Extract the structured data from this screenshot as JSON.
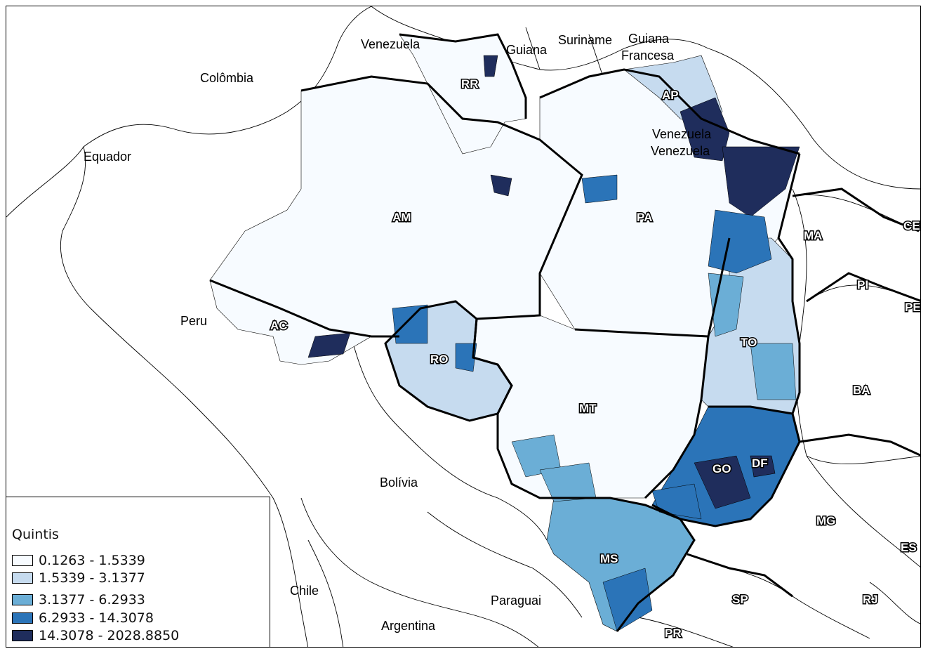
{
  "map": {
    "colors": {
      "q1": "#f7fbff",
      "q2": "#c6dbef",
      "q3": "#6baed6",
      "q4": "#2b74b8",
      "q5": "#1f2d5c",
      "outline": "#000000"
    },
    "countries": [
      {
        "key": "venezuela",
        "label": "Venezuela"
      },
      {
        "key": "guiana",
        "label": "Guiana"
      },
      {
        "key": "suriname",
        "label": "Suriname"
      },
      {
        "key": "guiana_francesa_1",
        "label": "Guiana"
      },
      {
        "key": "guiana_francesa_2",
        "label": "Francesa"
      },
      {
        "key": "colombia",
        "label": "Colômbia"
      },
      {
        "key": "equador",
        "label": "Equador"
      },
      {
        "key": "peru",
        "label": "Peru"
      },
      {
        "key": "bolivia",
        "label": "Bolívia"
      },
      {
        "key": "chile",
        "label": "Chile"
      },
      {
        "key": "paraguai",
        "label": "Paraguai"
      },
      {
        "key": "argentina",
        "label": "Argentina"
      },
      {
        "key": "venezuela_2",
        "label": "Venezuela"
      },
      {
        "key": "venezuela_3",
        "label": "Venezuela"
      }
    ],
    "states": [
      {
        "key": "rr",
        "label": "RR"
      },
      {
        "key": "ap",
        "label": "AP"
      },
      {
        "key": "am",
        "label": "AM"
      },
      {
        "key": "pa",
        "label": "PA"
      },
      {
        "key": "ma",
        "label": "MA"
      },
      {
        "key": "ce",
        "label": "CE"
      },
      {
        "key": "pi",
        "label": "PI"
      },
      {
        "key": "pe",
        "label": "PE"
      },
      {
        "key": "ac",
        "label": "AC"
      },
      {
        "key": "ro",
        "label": "RO"
      },
      {
        "key": "to",
        "label": "TO"
      },
      {
        "key": "ba",
        "label": "BA"
      },
      {
        "key": "mt",
        "label": "MT"
      },
      {
        "key": "go",
        "label": "GO"
      },
      {
        "key": "df",
        "label": "DF"
      },
      {
        "key": "mg",
        "label": "MG"
      },
      {
        "key": "es",
        "label": "ES"
      },
      {
        "key": "ms",
        "label": "MS"
      },
      {
        "key": "sp",
        "label": "SP"
      },
      {
        "key": "rj",
        "label": "RJ"
      },
      {
        "key": "pr",
        "label": "PR"
      }
    ]
  },
  "legend": {
    "title": "Quintis",
    "items": [
      {
        "label": "0.1263 - 1.5339",
        "color": "#f7fbff"
      },
      {
        "label": "1.5339 - 3.1377",
        "color": "#c6dbef"
      },
      {
        "label": "3.1377 - 6.2933",
        "color": "#6baed6"
      },
      {
        "label": "6.2933 - 14.3078",
        "color": "#2b74b8"
      },
      {
        "label": "14.3078 - 2028.8850",
        "color": "#1f2d5c"
      }
    ]
  }
}
